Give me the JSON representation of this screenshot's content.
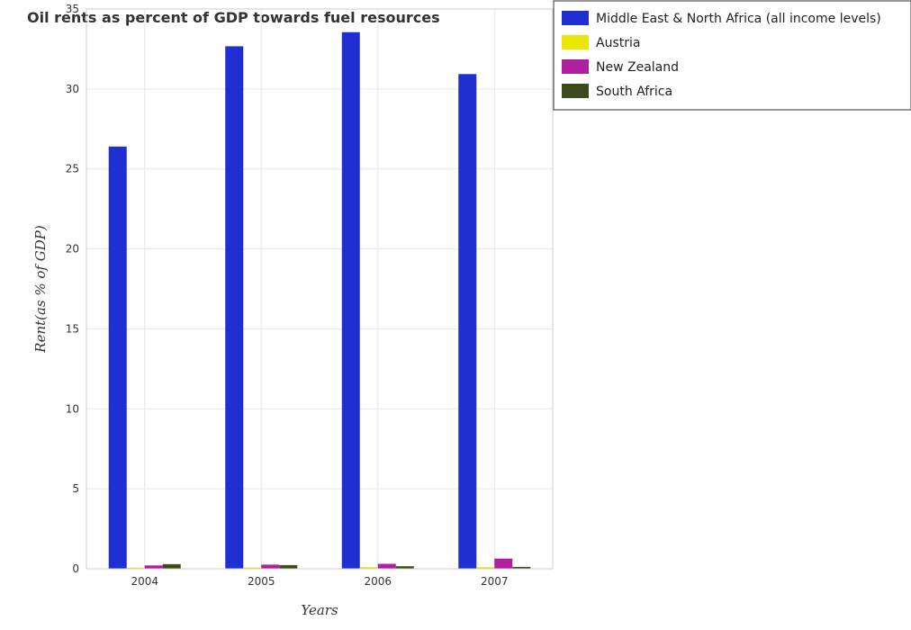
{
  "chart_data": {
    "type": "bar",
    "title": "Oil rents as percent of GDP towards fuel resources",
    "xlabel": "Years",
    "ylabel": "Rent(as % of GDP)",
    "categories": [
      "2004",
      "2005",
      "2006",
      "2007"
    ],
    "ylim": [
      0,
      35
    ],
    "yticks": [
      0,
      5,
      10,
      15,
      20,
      25,
      30,
      35
    ],
    "grid": true,
    "legend_position": "top-right",
    "series": [
      {
        "name": "Middle East & North Africa (all income levels)",
        "color": "#1f2fd1",
        "values": [
          26.4,
          32.67,
          33.55,
          30.93
        ]
      },
      {
        "name": "Austria",
        "color": "#e8e800",
        "values": [
          0.07,
          0.08,
          0.1,
          0.1
        ]
      },
      {
        "name": "New Zealand",
        "color": "#b0209e",
        "values": [
          0.21,
          0.26,
          0.31,
          0.64
        ]
      },
      {
        "name": "South Africa",
        "color": "#3d4a1a",
        "values": [
          0.29,
          0.23,
          0.16,
          0.12
        ]
      }
    ]
  }
}
